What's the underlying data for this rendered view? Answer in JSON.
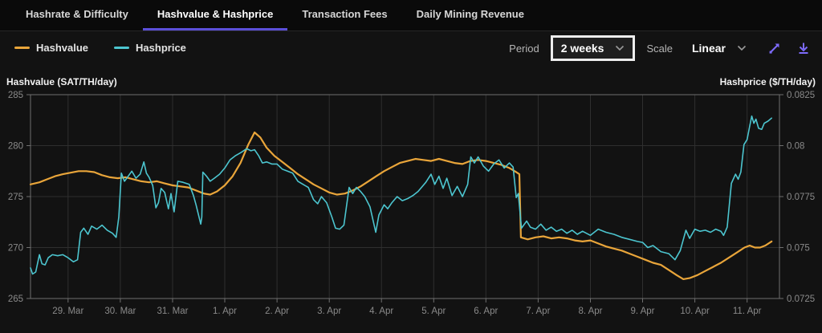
{
  "tabs": [
    {
      "label": "Hashrate & Difficulty",
      "active": false
    },
    {
      "label": "Hashvalue & Hashprice",
      "active": true
    },
    {
      "label": "Transaction Fees",
      "active": false
    },
    {
      "label": "Daily Mining Revenue",
      "active": false
    }
  ],
  "legend": [
    {
      "label": "Hashvalue",
      "color": "#e9a53a"
    },
    {
      "label": "Hashprice",
      "color": "#4cc5cf"
    }
  ],
  "controls": {
    "period_label": "Period",
    "period_value": "2 weeks",
    "scale_label": "Scale",
    "scale_value": "Linear",
    "icon_color": "#7d6bfa"
  },
  "chart_data": {
    "type": "line",
    "title": "Hashvalue & Hashprice over 2 weeks",
    "grid": true,
    "legend_position": "top-left",
    "left_axis": {
      "title": "Hashvalue (SAT/TH/day)",
      "min": 265,
      "max": 285,
      "ticks": [
        "285",
        "280",
        "275",
        "270",
        "265"
      ],
      "tick_values": [
        285,
        280,
        275,
        270,
        265
      ]
    },
    "right_axis": {
      "title": "Hashprice ($/TH/day)",
      "min": 0.0725,
      "max": 0.0825,
      "ticks": [
        "0.0825",
        "0.08",
        "0.0775",
        "0.075",
        "0.0725"
      ],
      "tick_values": [
        0.0825,
        0.08,
        0.0775,
        0.075,
        0.0725
      ]
    },
    "x_axis": {
      "labels": [
        "29. Mar",
        "30. Mar",
        "31. Mar",
        "1. Apr",
        "2. Apr",
        "3. Apr",
        "4. Apr",
        "5. Apr",
        "6. Apr",
        "7. Apr",
        "8. Apr",
        "9. Apr",
        "10. Apr",
        "11. Apr"
      ],
      "tick_days": [
        0,
        1,
        2,
        3,
        4,
        5,
        6,
        7,
        8,
        9,
        10,
        11,
        12,
        13
      ],
      "min": -0.72,
      "max": 13.62
    },
    "colors": {
      "grid": "#2f2f2f",
      "border": "#6f6f6f",
      "tick_text": "#8a8a8a"
    },
    "series": [
      {
        "name": "Hashvalue",
        "axis": "left",
        "color": "#e9a53a",
        "width": 2.2,
        "points": [
          [
            -0.72,
            276.2
          ],
          [
            -0.55,
            276.4
          ],
          [
            -0.4,
            276.7
          ],
          [
            -0.25,
            277.0
          ],
          [
            -0.1,
            277.2
          ],
          [
            0.05,
            277.35
          ],
          [
            0.2,
            277.5
          ],
          [
            0.35,
            277.5
          ],
          [
            0.5,
            277.4
          ],
          [
            0.65,
            277.1
          ],
          [
            0.8,
            276.9
          ],
          [
            0.95,
            276.8
          ],
          [
            1.1,
            276.9
          ],
          [
            1.25,
            276.7
          ],
          [
            1.4,
            276.5
          ],
          [
            1.55,
            276.4
          ],
          [
            1.7,
            276.5
          ],
          [
            1.85,
            276.3
          ],
          [
            2.0,
            276.1
          ],
          [
            2.15,
            276.0
          ],
          [
            2.3,
            275.9
          ],
          [
            2.45,
            275.6
          ],
          [
            2.6,
            275.3
          ],
          [
            2.72,
            275.2
          ],
          [
            2.85,
            275.5
          ],
          [
            3.0,
            276.1
          ],
          [
            3.15,
            277.0
          ],
          [
            3.3,
            278.3
          ],
          [
            3.45,
            280.1
          ],
          [
            3.57,
            281.3
          ],
          [
            3.68,
            280.8
          ],
          [
            3.8,
            279.8
          ],
          [
            3.95,
            279.0
          ],
          [
            4.1,
            278.4
          ],
          [
            4.25,
            277.8
          ],
          [
            4.4,
            277.2
          ],
          [
            4.55,
            276.7
          ],
          [
            4.7,
            276.2
          ],
          [
            4.85,
            275.8
          ],
          [
            5.0,
            275.4
          ],
          [
            5.15,
            275.2
          ],
          [
            5.3,
            275.3
          ],
          [
            5.45,
            275.6
          ],
          [
            5.6,
            276.0
          ],
          [
            5.75,
            276.5
          ],
          [
            5.9,
            277.0
          ],
          [
            6.05,
            277.5
          ],
          [
            6.2,
            277.9
          ],
          [
            6.35,
            278.3
          ],
          [
            6.5,
            278.5
          ],
          [
            6.65,
            278.7
          ],
          [
            6.8,
            278.6
          ],
          [
            6.95,
            278.5
          ],
          [
            7.1,
            278.7
          ],
          [
            7.25,
            278.5
          ],
          [
            7.4,
            278.3
          ],
          [
            7.55,
            278.2
          ],
          [
            7.7,
            278.5
          ],
          [
            7.85,
            278.6
          ],
          [
            8.0,
            278.5
          ],
          [
            8.15,
            278.3
          ],
          [
            8.3,
            278.1
          ],
          [
            8.45,
            277.8
          ],
          [
            8.58,
            277.4
          ],
          [
            8.64,
            277.2
          ],
          [
            8.67,
            271.0
          ],
          [
            8.8,
            270.8
          ],
          [
            8.95,
            271.0
          ],
          [
            9.1,
            271.1
          ],
          [
            9.25,
            270.9
          ],
          [
            9.4,
            271.0
          ],
          [
            9.55,
            270.9
          ],
          [
            9.7,
            270.7
          ],
          [
            9.85,
            270.6
          ],
          [
            10.0,
            270.7
          ],
          [
            10.15,
            270.4
          ],
          [
            10.3,
            270.1
          ],
          [
            10.45,
            269.9
          ],
          [
            10.6,
            269.7
          ],
          [
            10.75,
            269.4
          ],
          [
            10.9,
            269.1
          ],
          [
            11.05,
            268.8
          ],
          [
            11.2,
            268.5
          ],
          [
            11.35,
            268.3
          ],
          [
            11.5,
            267.8
          ],
          [
            11.65,
            267.3
          ],
          [
            11.78,
            266.9
          ],
          [
            11.9,
            267.0
          ],
          [
            12.05,
            267.3
          ],
          [
            12.2,
            267.7
          ],
          [
            12.35,
            268.1
          ],
          [
            12.5,
            268.5
          ],
          [
            12.65,
            269.0
          ],
          [
            12.8,
            269.5
          ],
          [
            12.95,
            270.0
          ],
          [
            13.05,
            270.2
          ],
          [
            13.15,
            270.0
          ],
          [
            13.25,
            270.0
          ],
          [
            13.35,
            270.2
          ],
          [
            13.47,
            270.6
          ]
        ]
      },
      {
        "name": "Hashprice",
        "axis": "right",
        "color": "#4cc5cf",
        "width": 1.6,
        "points": [
          [
            -0.72,
            0.074
          ],
          [
            -0.68,
            0.0737
          ],
          [
            -0.62,
            0.0738
          ],
          [
            -0.55,
            0.07465
          ],
          [
            -0.5,
            0.0742
          ],
          [
            -0.44,
            0.07415
          ],
          [
            -0.38,
            0.0745
          ],
          [
            -0.3,
            0.07465
          ],
          [
            -0.2,
            0.0746
          ],
          [
            -0.1,
            0.07465
          ],
          [
            0.0,
            0.0745
          ],
          [
            0.1,
            0.0743
          ],
          [
            0.18,
            0.0744
          ],
          [
            0.24,
            0.07575
          ],
          [
            0.3,
            0.07595
          ],
          [
            0.38,
            0.07565
          ],
          [
            0.45,
            0.07605
          ],
          [
            0.55,
            0.0759
          ],
          [
            0.65,
            0.0761
          ],
          [
            0.75,
            0.07585
          ],
          [
            0.85,
            0.0757
          ],
          [
            0.92,
            0.0755
          ],
          [
            0.97,
            0.0765
          ],
          [
            1.02,
            0.07865
          ],
          [
            1.08,
            0.07825
          ],
          [
            1.15,
            0.0785
          ],
          [
            1.22,
            0.07875
          ],
          [
            1.3,
            0.0784
          ],
          [
            1.38,
            0.0786
          ],
          [
            1.45,
            0.0792
          ],
          [
            1.5,
            0.07865
          ],
          [
            1.55,
            0.07845
          ],
          [
            1.62,
            0.07805
          ],
          [
            1.68,
            0.07695
          ],
          [
            1.73,
            0.0772
          ],
          [
            1.78,
            0.0779
          ],
          [
            1.85,
            0.0777
          ],
          [
            1.92,
            0.0769
          ],
          [
            1.97,
            0.07765
          ],
          [
            2.03,
            0.07675
          ],
          [
            2.1,
            0.07825
          ],
          [
            2.2,
            0.0782
          ],
          [
            2.32,
            0.0781
          ],
          [
            2.4,
            0.07755
          ],
          [
            2.45,
            0.0771
          ],
          [
            2.54,
            0.07615
          ],
          [
            2.56,
            0.0765
          ],
          [
            2.58,
            0.0787
          ],
          [
            2.65,
            0.0785
          ],
          [
            2.72,
            0.07825
          ],
          [
            2.8,
            0.0784
          ],
          [
            2.9,
            0.0786
          ],
          [
            3.0,
            0.0789
          ],
          [
            3.1,
            0.0793
          ],
          [
            3.2,
            0.0795
          ],
          [
            3.3,
            0.07965
          ],
          [
            3.42,
            0.07985
          ],
          [
            3.5,
            0.07975
          ],
          [
            3.57,
            0.0798
          ],
          [
            3.65,
            0.0795
          ],
          [
            3.72,
            0.07915
          ],
          [
            3.8,
            0.0792
          ],
          [
            3.9,
            0.0791
          ],
          [
            4.0,
            0.0791
          ],
          [
            4.1,
            0.07885
          ],
          [
            4.2,
            0.07875
          ],
          [
            4.3,
            0.07865
          ],
          [
            4.4,
            0.07825
          ],
          [
            4.5,
            0.0781
          ],
          [
            4.6,
            0.07795
          ],
          [
            4.7,
            0.07735
          ],
          [
            4.78,
            0.07715
          ],
          [
            4.85,
            0.0775
          ],
          [
            4.95,
            0.0772
          ],
          [
            5.05,
            0.0765
          ],
          [
            5.12,
            0.07595
          ],
          [
            5.2,
            0.0759
          ],
          [
            5.28,
            0.0761
          ],
          [
            5.38,
            0.07795
          ],
          [
            5.45,
            0.07765
          ],
          [
            5.52,
            0.07795
          ],
          [
            5.6,
            0.07775
          ],
          [
            5.68,
            0.0775
          ],
          [
            5.78,
            0.077
          ],
          [
            5.89,
            0.07575
          ],
          [
            5.95,
            0.0766
          ],
          [
            6.05,
            0.0771
          ],
          [
            6.12,
            0.0769
          ],
          [
            6.2,
            0.0772
          ],
          [
            6.3,
            0.0775
          ],
          [
            6.4,
            0.0773
          ],
          [
            6.5,
            0.0774
          ],
          [
            6.6,
            0.07755
          ],
          [
            6.7,
            0.07775
          ],
          [
            6.85,
            0.0782
          ],
          [
            6.95,
            0.0786
          ],
          [
            7.02,
            0.0781
          ],
          [
            7.1,
            0.0785
          ],
          [
            7.18,
            0.0779
          ],
          [
            7.25,
            0.0784
          ],
          [
            7.35,
            0.07755
          ],
          [
            7.45,
            0.078
          ],
          [
            7.55,
            0.0775
          ],
          [
            7.65,
            0.0781
          ],
          [
            7.71,
            0.07945
          ],
          [
            7.78,
            0.07915
          ],
          [
            7.85,
            0.07945
          ],
          [
            7.95,
            0.079
          ],
          [
            8.05,
            0.07875
          ],
          [
            8.15,
            0.0791
          ],
          [
            8.25,
            0.0793
          ],
          [
            8.35,
            0.0789
          ],
          [
            8.45,
            0.07915
          ],
          [
            8.52,
            0.07895
          ],
          [
            8.58,
            0.07745
          ],
          [
            8.62,
            0.07765
          ],
          [
            8.68,
            0.07595
          ],
          [
            8.78,
            0.0763
          ],
          [
            8.85,
            0.076
          ],
          [
            8.95,
            0.0759
          ],
          [
            9.05,
            0.07615
          ],
          [
            9.15,
            0.07585
          ],
          [
            9.25,
            0.076
          ],
          [
            9.35,
            0.0758
          ],
          [
            9.45,
            0.0759
          ],
          [
            9.55,
            0.0757
          ],
          [
            9.65,
            0.07585
          ],
          [
            9.75,
            0.07565
          ],
          [
            9.85,
            0.0758
          ],
          [
            10.0,
            0.0756
          ],
          [
            10.15,
            0.0759
          ],
          [
            10.3,
            0.07575
          ],
          [
            10.45,
            0.07565
          ],
          [
            10.6,
            0.0755
          ],
          [
            10.75,
            0.0754
          ],
          [
            10.9,
            0.0753
          ],
          [
            11.0,
            0.07525
          ],
          [
            11.1,
            0.075
          ],
          [
            11.2,
            0.0751
          ],
          [
            11.35,
            0.0748
          ],
          [
            11.5,
            0.0747
          ],
          [
            11.62,
            0.0744
          ],
          [
            11.72,
            0.07485
          ],
          [
            11.83,
            0.07585
          ],
          [
            11.9,
            0.07545
          ],
          [
            12.0,
            0.0759
          ],
          [
            12.1,
            0.0758
          ],
          [
            12.2,
            0.07585
          ],
          [
            12.3,
            0.07575
          ],
          [
            12.4,
            0.0759
          ],
          [
            12.5,
            0.0758
          ],
          [
            12.55,
            0.0756
          ],
          [
            12.62,
            0.076
          ],
          [
            12.7,
            0.07815
          ],
          [
            12.78,
            0.0786
          ],
          [
            12.83,
            0.07835
          ],
          [
            12.88,
            0.0787
          ],
          [
            12.94,
            0.08005
          ],
          [
            13.0,
            0.0803
          ],
          [
            13.05,
            0.08095
          ],
          [
            13.09,
            0.08145
          ],
          [
            13.13,
            0.0811
          ],
          [
            13.17,
            0.0813
          ],
          [
            13.22,
            0.08085
          ],
          [
            13.28,
            0.0808
          ],
          [
            13.33,
            0.0811
          ],
          [
            13.4,
            0.0812
          ],
          [
            13.47,
            0.08135
          ]
        ]
      }
    ]
  }
}
